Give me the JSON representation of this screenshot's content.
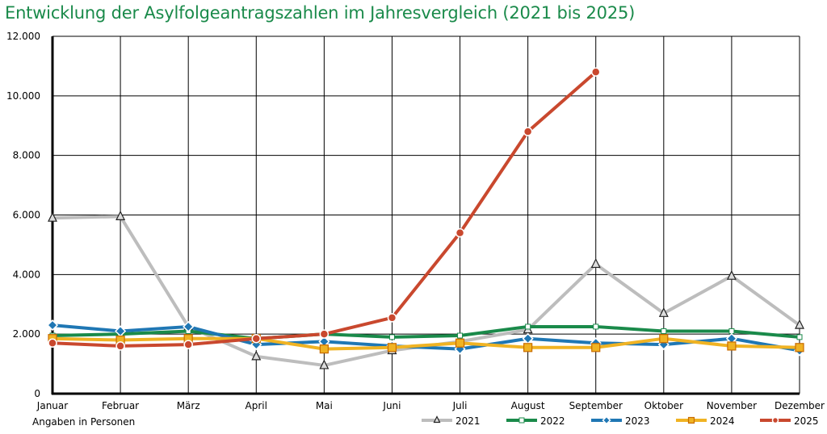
{
  "chart_data": {
    "type": "line",
    "title": "Entwicklung der Asylfolgeantragszahlen im Jahresvergleich (2021 bis 2025)",
    "xlabel": "",
    "ylabel": "",
    "note": "Angaben in Personen",
    "categories": [
      "Januar",
      "Februar",
      "März",
      "April",
      "Mai",
      "Juni",
      "Juli",
      "August",
      "September",
      "Oktober",
      "November",
      "Dezember"
    ],
    "ylim": [
      0,
      12000
    ],
    "yticks": [
      0,
      2000,
      4000,
      6000,
      8000,
      10000,
      12000
    ],
    "ytick_labels": [
      "0",
      "2.000",
      "4.000",
      "6.000",
      "8.000",
      "10.000",
      "12.000"
    ],
    "grid": true,
    "legend_position": "bottom-right",
    "series": [
      {
        "name": "2021",
        "color": "#bdbdbd",
        "marker": "triangle",
        "values": [
          5900,
          5950,
          2250,
          1250,
          950,
          1450,
          1750,
          2150,
          4350,
          2700,
          3950,
          2300
        ]
      },
      {
        "name": "2022",
        "color": "#1a8a4a",
        "marker": "square-small",
        "values": [
          1950,
          2000,
          2100,
          1850,
          2000,
          1900,
          1950,
          2250,
          2250,
          2100,
          2100,
          1900
        ]
      },
      {
        "name": "2023",
        "color": "#1f77b4",
        "marker": "diamond",
        "values": [
          2300,
          2100,
          2250,
          1650,
          1750,
          1600,
          1500,
          1850,
          1700,
          1650,
          1850,
          1450
        ]
      },
      {
        "name": "2024",
        "color": "#f0b323",
        "marker": "square",
        "values": [
          1850,
          1800,
          1850,
          1850,
          1500,
          1550,
          1700,
          1550,
          1550,
          1850,
          1600,
          1550
        ]
      },
      {
        "name": "2025",
        "color": "#c9482e",
        "marker": "circle",
        "values": [
          1700,
          1600,
          1650,
          1850,
          2000,
          2550,
          5400,
          8800,
          10800,
          null,
          null,
          null
        ]
      }
    ]
  }
}
